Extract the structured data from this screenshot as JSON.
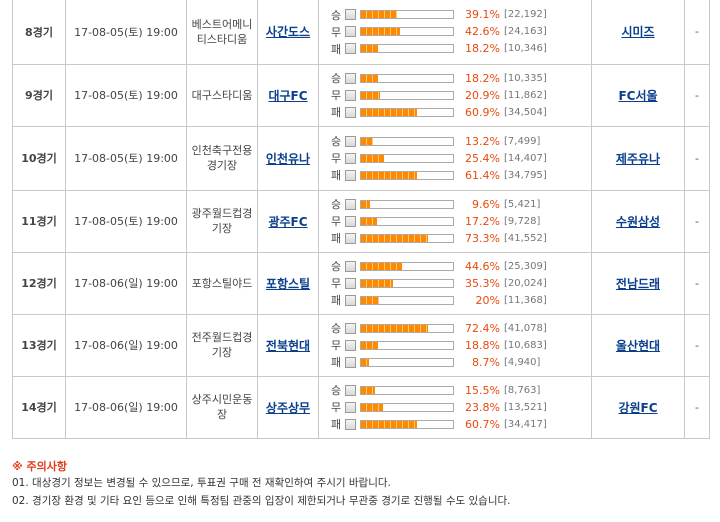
{
  "labels": {
    "win": "승",
    "draw": "무",
    "lose": "패"
  },
  "matches": [
    {
      "no": "8경기",
      "date": "17-08-05(토) 19:00",
      "stadium": "베스트어메니티스타디움",
      "home": "사간도스",
      "away": "시미즈",
      "result": "-",
      "votes": [
        {
          "pct": "39.1%",
          "count": "[22,192]",
          "value": 39.1
        },
        {
          "pct": "42.6%",
          "count": "[24,163]",
          "value": 42.6
        },
        {
          "pct": "18.2%",
          "count": "[10,346]",
          "value": 18.2
        }
      ]
    },
    {
      "no": "9경기",
      "date": "17-08-05(토) 19:00",
      "stadium": "대구스타디움",
      "home": "대구FC",
      "away": "FC서울",
      "result": "-",
      "votes": [
        {
          "pct": "18.2%",
          "count": "[10,335]",
          "value": 18.2
        },
        {
          "pct": "20.9%",
          "count": "[11,862]",
          "value": 20.9
        },
        {
          "pct": "60.9%",
          "count": "[34,504]",
          "value": 60.9
        }
      ]
    },
    {
      "no": "10경기",
      "date": "17-08-05(토) 19:00",
      "stadium": "인천축구전용경기장",
      "home": "인천유나",
      "away": "제주유나",
      "result": "-",
      "votes": [
        {
          "pct": "13.2%",
          "count": "[7,499]",
          "value": 13.2
        },
        {
          "pct": "25.4%",
          "count": "[14,407]",
          "value": 25.4
        },
        {
          "pct": "61.4%",
          "count": "[34,795]",
          "value": 61.4
        }
      ]
    },
    {
      "no": "11경기",
      "date": "17-08-05(토) 19:00",
      "stadium": "광주월드컵경기장",
      "home": "광주FC",
      "away": "수원삼성",
      "result": "-",
      "votes": [
        {
          "pct": "9.6%",
          "count": "[5,421]",
          "value": 9.6
        },
        {
          "pct": "17.2%",
          "count": "[9,728]",
          "value": 17.2
        },
        {
          "pct": "73.3%",
          "count": "[41,552]",
          "value": 73.3
        }
      ]
    },
    {
      "no": "12경기",
      "date": "17-08-06(일) 19:00",
      "stadium": "포항스틸야드",
      "home": "포항스틸",
      "away": "전남드래",
      "result": "-",
      "votes": [
        {
          "pct": "44.6%",
          "count": "[25,309]",
          "value": 44.6
        },
        {
          "pct": "35.3%",
          "count": "[20,024]",
          "value": 35.3
        },
        {
          "pct": "20%",
          "count": "[11,368]",
          "value": 20.0
        }
      ]
    },
    {
      "no": "13경기",
      "date": "17-08-06(일) 19:00",
      "stadium": "전주월드컵경기장",
      "home": "전북현대",
      "away": "울산현대",
      "result": "-",
      "votes": [
        {
          "pct": "72.4%",
          "count": "[41,078]",
          "value": 72.4
        },
        {
          "pct": "18.8%",
          "count": "[10,683]",
          "value": 18.8
        },
        {
          "pct": "8.7%",
          "count": "[4,940]",
          "value": 8.7
        }
      ]
    },
    {
      "no": "14경기",
      "date": "17-08-06(일) 19:00",
      "stadium": "상주시민운동장",
      "home": "상주상무",
      "away": "강원FC",
      "result": "-",
      "votes": [
        {
          "pct": "15.5%",
          "count": "[8,763]",
          "value": 15.5
        },
        {
          "pct": "23.8%",
          "count": "[13,521]",
          "value": 23.8
        },
        {
          "pct": "60.7%",
          "count": "[34,417]",
          "value": 60.7
        }
      ]
    }
  ],
  "notice": {
    "title": "※ 주의사항",
    "lines": [
      "01. 대상경기 정보는 변경될 수 있으므로, 투표권 구매 전 재확인하여 주시기 바랍니다.",
      "02. 경기장 환경 및 기타 요인 등으로 인해 특정팀 관중의 입장이 제한되거나 무관중 경기로 진행될 수도 있습니다."
    ]
  },
  "colors": {
    "bar": "#ff8a00",
    "pct": "#e84b0c",
    "team": "#0a3f8c",
    "notice_title": "#e23b19"
  }
}
